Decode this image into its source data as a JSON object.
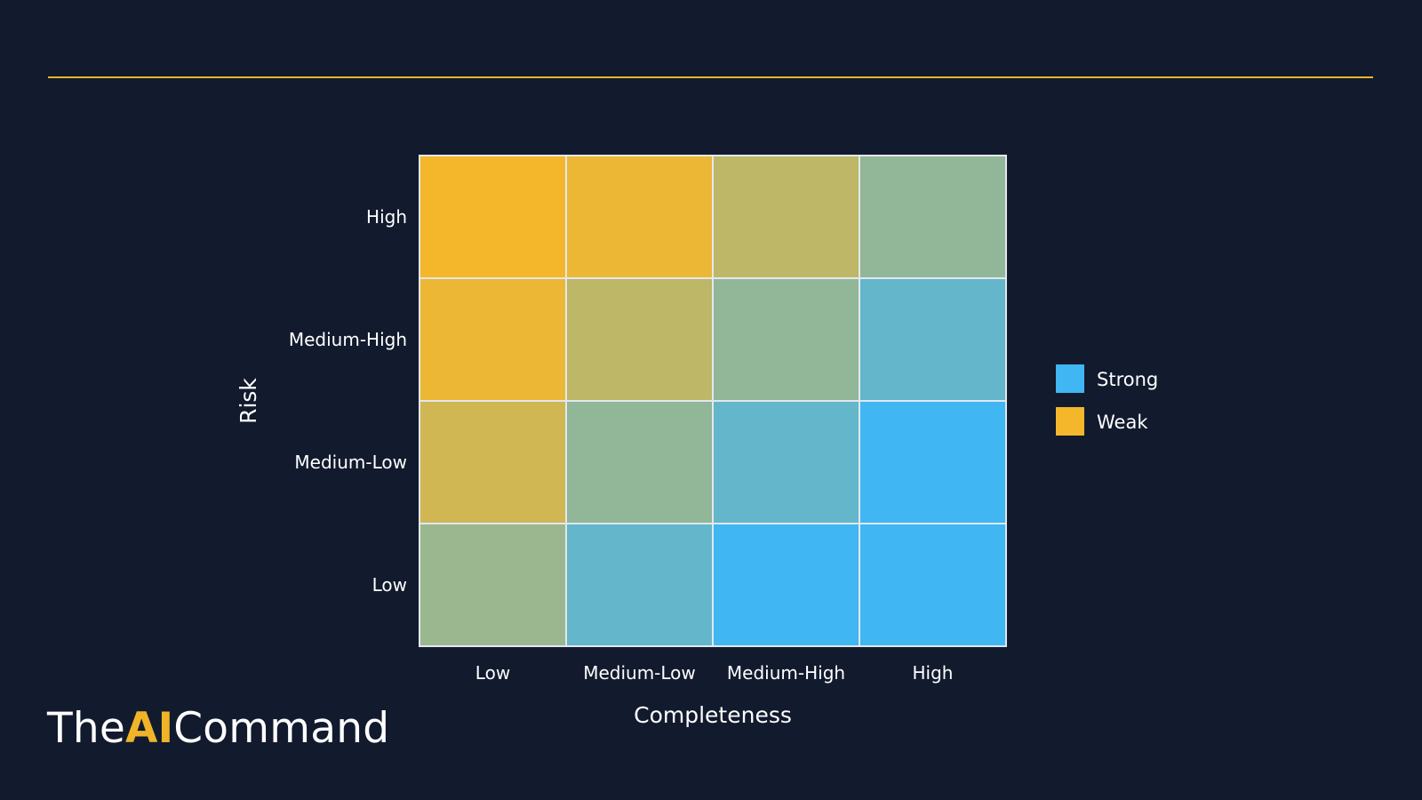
{
  "brand": {
    "prefix": "The",
    "accent": "AI",
    "suffix": "Command",
    "accent_color": "#f0b429"
  },
  "colors": {
    "background": "#121a2e",
    "rule": "#f0b429",
    "weak": "#f4b72b",
    "strong": "#40b6f2",
    "grid": "#e2e8ef",
    "text": "#ffffff"
  },
  "chart_data": {
    "type": "heatmap",
    "title": "",
    "xlabel": "Completeness",
    "ylabel": "Risk",
    "x_categories": [
      "Low",
      "Medium-Low",
      "Medium-High",
      "High"
    ],
    "y_categories": [
      "Low",
      "Medium-Low",
      "Medium-High",
      "High"
    ],
    "value_description": "0 = Weak, 1 = Strong; values listed per row from y=Low upward, columns x=Low..High",
    "values": [
      [
        0.5,
        0.8,
        1.0,
        1.0
      ],
      [
        0.2,
        0.55,
        0.8,
        1.0
      ],
      [
        0.05,
        0.3,
        0.55,
        0.8
      ],
      [
        0.0,
        0.05,
        0.3,
        0.55
      ]
    ],
    "legend": {
      "placement": "right",
      "entries": [
        {
          "label": "Strong",
          "color": "#40b6f2"
        },
        {
          "label": "Weak",
          "color": "#f4b72b"
        }
      ]
    },
    "grid": true
  }
}
